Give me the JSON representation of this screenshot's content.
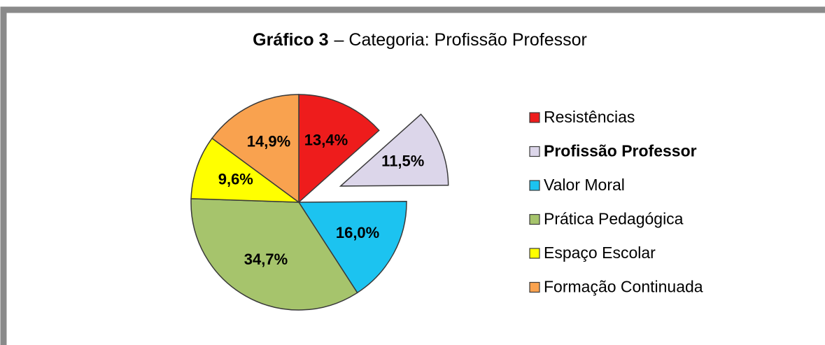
{
  "chart_data": {
    "type": "pie",
    "title": {
      "prefix": "Gráfico 3",
      "text": "– Categoria: Profissão Professor"
    },
    "categories": [
      "Resistências",
      "Profissão Professor",
      "Valor Moral",
      "Prática Pedagógica",
      "Espaço Escolar",
      "Formação Continuada"
    ],
    "values": [
      13.4,
      11.5,
      16.0,
      34.7,
      9.6,
      14.9
    ],
    "value_labels": [
      "13,4%",
      "11,5%",
      "16,0%",
      "34,7%",
      "9,6%",
      "14,9%"
    ],
    "colors": [
      "#ee1c1c",
      "#dcd6ea",
      "#1cc3f0",
      "#a6c46c",
      "#ffff00",
      "#f9a24f"
    ],
    "highlight": "Profissão Professor",
    "legend": "right"
  }
}
